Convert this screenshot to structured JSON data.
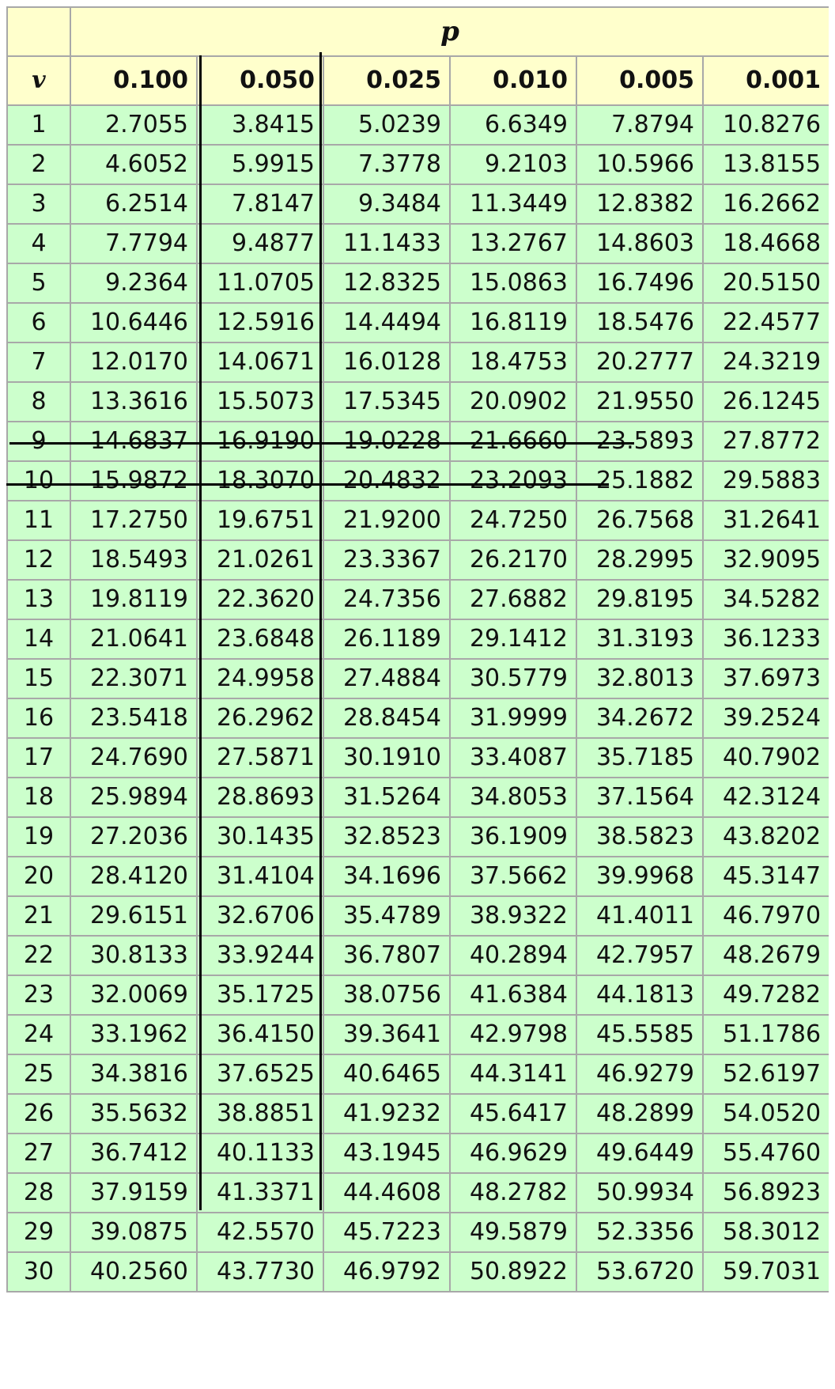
{
  "table": {
    "p_label": "p",
    "v_label": "v",
    "columns": [
      "0.100",
      "0.050",
      "0.025",
      "0.010",
      "0.005",
      "0.001"
    ],
    "rows": [
      [
        "1",
        "2.7055",
        "3.8415",
        "5.0239",
        "6.6349",
        "7.8794",
        "10.8276"
      ],
      [
        "2",
        "4.6052",
        "5.9915",
        "7.3778",
        "9.2103",
        "10.5966",
        "13.8155"
      ],
      [
        "3",
        "6.2514",
        "7.8147",
        "9.3484",
        "11.3449",
        "12.8382",
        "16.2662"
      ],
      [
        "4",
        "7.7794",
        "9.4877",
        "11.1433",
        "13.2767",
        "14.8603",
        "18.4668"
      ],
      [
        "5",
        "9.2364",
        "11.0705",
        "12.8325",
        "15.0863",
        "16.7496",
        "20.5150"
      ],
      [
        "6",
        "10.6446",
        "12.5916",
        "14.4494",
        "16.8119",
        "18.5476",
        "22.4577"
      ],
      [
        "7",
        "12.0170",
        "14.0671",
        "16.0128",
        "18.4753",
        "20.2777",
        "24.3219"
      ],
      [
        "8",
        "13.3616",
        "15.5073",
        "17.5345",
        "20.0902",
        "21.9550",
        "26.1245"
      ],
      [
        "9",
        "14.6837",
        "16.9190",
        "19.0228",
        "21.6660",
        "23.5893",
        "27.8772"
      ],
      [
        "10",
        "15.9872",
        "18.3070",
        "20.4832",
        "23.2093",
        "25.1882",
        "29.5883"
      ],
      [
        "11",
        "17.2750",
        "19.6751",
        "21.9200",
        "24.7250",
        "26.7568",
        "31.2641"
      ],
      [
        "12",
        "18.5493",
        "21.0261",
        "23.3367",
        "26.2170",
        "28.2995",
        "32.9095"
      ],
      [
        "13",
        "19.8119",
        "22.3620",
        "24.7356",
        "27.6882",
        "29.8195",
        "34.5282"
      ],
      [
        "14",
        "21.0641",
        "23.6848",
        "26.1189",
        "29.1412",
        "31.3193",
        "36.1233"
      ],
      [
        "15",
        "22.3071",
        "24.9958",
        "27.4884",
        "30.5779",
        "32.8013",
        "37.6973"
      ],
      [
        "16",
        "23.5418",
        "26.2962",
        "28.8454",
        "31.9999",
        "34.2672",
        "39.2524"
      ],
      [
        "17",
        "24.7690",
        "27.5871",
        "30.1910",
        "33.4087",
        "35.7185",
        "40.7902"
      ],
      [
        "18",
        "25.9894",
        "28.8693",
        "31.5264",
        "34.8053",
        "37.1564",
        "42.3124"
      ],
      [
        "19",
        "27.2036",
        "30.1435",
        "32.8523",
        "36.1909",
        "38.5823",
        "43.8202"
      ],
      [
        "20",
        "28.4120",
        "31.4104",
        "34.1696",
        "37.5662",
        "39.9968",
        "45.3147"
      ],
      [
        "21",
        "29.6151",
        "32.6706",
        "35.4789",
        "38.9322",
        "41.4011",
        "46.7970"
      ],
      [
        "22",
        "30.8133",
        "33.9244",
        "36.7807",
        "40.2894",
        "42.7957",
        "48.2679"
      ],
      [
        "23",
        "32.0069",
        "35.1725",
        "38.0756",
        "41.6384",
        "44.1813",
        "49.7282"
      ],
      [
        "24",
        "33.1962",
        "36.4150",
        "39.3641",
        "42.9798",
        "45.5585",
        "51.1786"
      ],
      [
        "25",
        "34.3816",
        "37.6525",
        "40.6465",
        "44.3141",
        "46.9279",
        "52.6197"
      ],
      [
        "26",
        "35.5632",
        "38.8851",
        "41.9232",
        "45.6417",
        "48.2899",
        "54.0520"
      ],
      [
        "27",
        "36.7412",
        "40.1133",
        "43.1945",
        "46.9629",
        "49.6449",
        "55.4760"
      ],
      [
        "28",
        "37.9159",
        "41.3371",
        "44.4608",
        "48.2782",
        "50.9934",
        "56.8923"
      ],
      [
        "29",
        "39.0875",
        "42.5570",
        "45.7223",
        "49.5879",
        "52.3356",
        "58.3012"
      ],
      [
        "30",
        "40.2560",
        "43.7730",
        "46.9792",
        "50.8922",
        "53.6720",
        "59.7031"
      ]
    ]
  },
  "colors": {
    "header_bg": "#ffffcc",
    "body_bg": "#ccffcc",
    "border": "#a8a8a8",
    "annotation_line": "#000000"
  }
}
